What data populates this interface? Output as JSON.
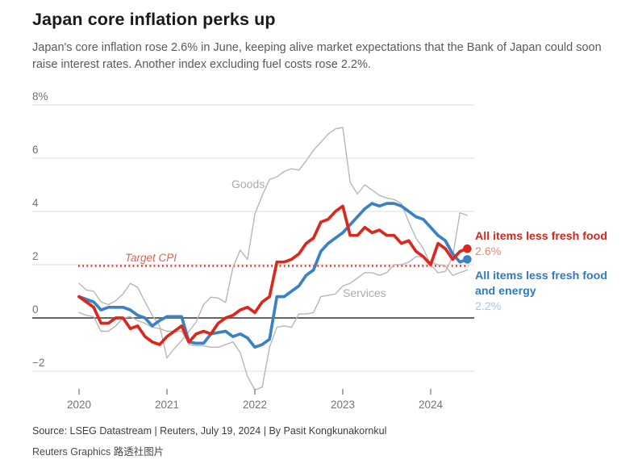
{
  "header": {
    "title": "Japan core inflation perks up",
    "subtitle": "Japan's core inflation rose 2.6% in June, keeping alive market expectations that the Bank of Japan could soon raise interest rates. Another index excluding fuel costs rose 2.2%."
  },
  "chart_data": {
    "type": "line",
    "unit": "%",
    "frequency": "monthly",
    "x_start": "2020-01",
    "x_end": "2024-06",
    "ylim": [
      -2.9,
      8
    ],
    "grid": "horizontal",
    "y_ticks": [
      {
        "value": 8,
        "label": "8%"
      },
      {
        "value": 6,
        "label": "6"
      },
      {
        "value": 4,
        "label": "4"
      },
      {
        "value": 2,
        "label": "2"
      },
      {
        "value": 0,
        "label": "0"
      },
      {
        "value": -2,
        "label": "−2"
      }
    ],
    "x_ticks": [
      {
        "month_index": 0,
        "label": "2020"
      },
      {
        "month_index": 12,
        "label": "2021"
      },
      {
        "month_index": 24,
        "label": "2022"
      },
      {
        "month_index": 36,
        "label": "2023"
      },
      {
        "month_index": 48,
        "label": "2024"
      }
    ],
    "target_line": {
      "value": 2,
      "label": "Target CPI",
      "color": "#e0301e",
      "style": "dotted"
    },
    "annotations": {
      "goods": "Goods",
      "services": "Services",
      "target": "Target CPI"
    },
    "series": [
      {
        "name": "Goods",
        "color": "#b7b7b7",
        "width": 1.4,
        "end_dot": false,
        "values": [
          1.3,
          1.05,
          1.0,
          0.6,
          0.5,
          0.65,
          0.9,
          1.3,
          1.15,
          0.6,
          0.1,
          -0.3,
          -1.5,
          -1.15,
          -0.85,
          -0.5,
          -0.15,
          0.5,
          0.78,
          0.75,
          0.58,
          1.9,
          2.55,
          2.2,
          3.9,
          4.6,
          5.2,
          5.3,
          5.5,
          5.6,
          5.55,
          5.9,
          6.3,
          6.6,
          6.9,
          7.1,
          7.15,
          5.1,
          4.65,
          5.0,
          4.8,
          4.6,
          4.5,
          4.45,
          4.3,
          3.6,
          3.0,
          2.6,
          2.0,
          1.7,
          1.75,
          2.3,
          3.95,
          3.85
        ]
      },
      {
        "name": "Services",
        "color": "#b7b7b7",
        "width": 1.4,
        "end_dot": false,
        "values": [
          0.2,
          0.1,
          0.05,
          -0.5,
          -0.5,
          -0.3,
          0.0,
          0.05,
          -0.1,
          -0.2,
          -0.35,
          -0.4,
          -0.5,
          -0.5,
          -0.5,
          -1.0,
          -1.05,
          -1.05,
          -1.1,
          -1.1,
          -1.0,
          -0.9,
          -1.3,
          -2.2,
          -2.7,
          -2.6,
          -1.1,
          -0.35,
          -0.3,
          -0.35,
          0.15,
          0.15,
          0.2,
          0.8,
          0.85,
          0.9,
          1.2,
          1.3,
          1.5,
          1.7,
          1.7,
          1.6,
          1.7,
          2.0,
          2.0,
          2.1,
          2.3,
          2.3,
          2.1,
          2.0,
          1.95,
          1.6,
          1.7,
          1.8
        ]
      },
      {
        "name": "All items less fresh food and energy",
        "color": "#3b82c4",
        "width": 3.7,
        "end_dot": true,
        "values": [
          0.8,
          0.7,
          0.6,
          0.3,
          0.4,
          0.4,
          0.4,
          0.3,
          0.1,
          0.0,
          -0.3,
          -0.1,
          0.05,
          0.05,
          0.05,
          -0.9,
          -0.95,
          -0.95,
          -0.6,
          -0.55,
          -0.5,
          -0.7,
          -0.6,
          -0.75,
          -1.1,
          -1.0,
          -0.8,
          0.8,
          0.8,
          1.0,
          1.2,
          1.6,
          1.8,
          2.5,
          2.8,
          3.0,
          3.2,
          3.5,
          3.8,
          4.1,
          4.3,
          4.2,
          4.3,
          4.3,
          4.2,
          4.0,
          3.8,
          3.7,
          3.4,
          3.1,
          2.9,
          2.4,
          2.1,
          2.2
        ]
      },
      {
        "name": "All items less fresh food",
        "color": "#da291c",
        "width": 3.7,
        "end_dot": true,
        "values": [
          0.8,
          0.6,
          0.4,
          -0.2,
          -0.2,
          0.0,
          0.0,
          -0.4,
          -0.3,
          -0.7,
          -0.9,
          -1.0,
          -0.7,
          -0.5,
          -0.3,
          -0.9,
          -0.6,
          -0.5,
          -0.6,
          -0.2,
          0.0,
          0.1,
          0.3,
          0.4,
          0.2,
          0.6,
          0.8,
          2.1,
          2.1,
          2.2,
          2.4,
          2.8,
          3.0,
          3.6,
          3.7,
          4.0,
          4.2,
          3.1,
          3.1,
          3.4,
          3.2,
          3.3,
          3.1,
          3.1,
          2.8,
          2.9,
          2.5,
          2.3,
          2.0,
          2.8,
          2.6,
          2.2,
          2.5,
          2.6
        ]
      }
    ],
    "series_labels": {
      "core": {
        "title": "All items less fresh food",
        "value": "2.6%"
      },
      "corecore": {
        "title_line1": "All items less fresh food",
        "title_line2": "and energy",
        "value": "2.2%"
      }
    }
  },
  "footer": {
    "source": "Source: LSEG Datastream | Reuters, July 19, 2024 | By Pasit Kongkunakornkul",
    "credit": "Reuters Graphics 路透社图片"
  },
  "colors": {
    "core_line": "#da291c",
    "corecore_line": "#3b82c4",
    "gray_line": "#b7b7b7",
    "target_line": "#e0301e",
    "zero_axis": "#4f4f4f",
    "gridline": "#dedede"
  }
}
